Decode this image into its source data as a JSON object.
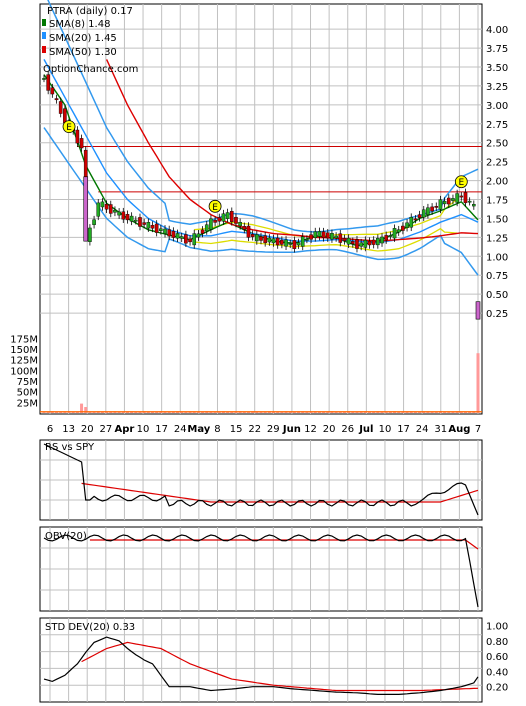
{
  "colors": {
    "panel_border": "#000000",
    "grid": "#c0c0c0",
    "candle_up": "#22aa22",
    "candle_down": "#cc0000",
    "sma8": "#007700",
    "sma20": "#1e90ff",
    "sma50": "#dd0000",
    "band_outer": "#3399ee",
    "band_inner": "#dddd00",
    "resistance": "#cc0000",
    "volume_bar": "#ff9999",
    "volume_avg": "#ff6600",
    "earnings_marker": "#ffff00",
    "black_line": "#000000",
    "spike_bar": "#cc66cc"
  },
  "main_panel": {
    "legend": [
      {
        "label": "PTRA (daily) 0.17",
        "swatch": "none"
      },
      {
        "label": "SMA(8) 1.48",
        "swatch": "#007700"
      },
      {
        "label": "SMA(20) 1.45",
        "swatch": "#1e90ff"
      },
      {
        "label": "SMA(50) 1.30",
        "swatch": "#dd0000"
      }
    ],
    "watermark": "OptionChance.com",
    "earnings_label": "E",
    "y_ticks": [
      "4.00",
      "3.75",
      "3.50",
      "3.25",
      "3.00",
      "2.75",
      "2.50",
      "2.25",
      "2.00",
      "1.75",
      "1.50",
      "1.25",
      "1.00",
      "0.75",
      "0.50",
      "0.25"
    ],
    "vol_ticks": [
      "175M",
      "150M",
      "125M",
      "100M",
      "75M",
      "50M",
      "25M"
    ]
  },
  "x_axis": {
    "labels": [
      "6",
      "13",
      "20",
      "27",
      "Apr",
      "10",
      "17",
      "24",
      "May",
      "8",
      "15",
      "22",
      "29",
      "Jun",
      "12",
      "20",
      "26",
      "Jul",
      "10",
      "17",
      "24",
      "31",
      "Aug",
      "7"
    ]
  },
  "rs_panel": {
    "label": "RS vs SPY"
  },
  "obv_panel": {
    "label": "OBV(20)"
  },
  "std_panel": {
    "label": "STD DEV(20) 0.33",
    "y_ticks": [
      "1.00",
      "0.80",
      "0.60",
      "0.40",
      "0.20"
    ]
  },
  "chart_data": [
    {
      "type": "line",
      "title": "PTRA (daily) 0.17",
      "note_earnings_days": [
        6,
        41,
        100
      ],
      "series": [
        {
          "name": "PTRA (daily) 0.17",
          "points": [
            [
              0,
              3.35
            ],
            [
              5,
              2.8
            ],
            [
              9,
              2.45
            ],
            [
              10,
              1.2
            ],
            [
              13,
              1.7
            ],
            [
              18,
              1.55
            ],
            [
              25,
              1.4
            ],
            [
              30,
              1.3
            ],
            [
              35,
              1.2
            ],
            [
              40,
              1.45
            ],
            [
              44,
              1.55
            ],
            [
              50,
              1.25
            ],
            [
              55,
              1.2
            ],
            [
              60,
              1.15
            ],
            [
              65,
              1.3
            ],
            [
              70,
              1.25
            ],
            [
              75,
              1.15
            ],
            [
              80,
              1.2
            ],
            [
              85,
              1.35
            ],
            [
              90,
              1.55
            ],
            [
              95,
              1.7
            ],
            [
              100,
              1.8
            ],
            [
              103,
              1.65
            ],
            [
              104,
              0.17
            ]
          ]
        },
        {
          "name": "SMA(8) 1.48",
          "points": [
            [
              0,
              3.4
            ],
            [
              5,
              3.0
            ],
            [
              10,
              2.2
            ],
            [
              15,
              1.7
            ],
            [
              20,
              1.5
            ],
            [
              25,
              1.35
            ],
            [
              30,
              1.28
            ],
            [
              35,
              1.22
            ],
            [
              40,
              1.35
            ],
            [
              44,
              1.45
            ],
            [
              50,
              1.3
            ],
            [
              55,
              1.2
            ],
            [
              60,
              1.17
            ],
            [
              65,
              1.27
            ],
            [
              70,
              1.24
            ],
            [
              75,
              1.14
            ],
            [
              80,
              1.2
            ],
            [
              85,
              1.32
            ],
            [
              90,
              1.5
            ],
            [
              95,
              1.6
            ],
            [
              100,
              1.72
            ],
            [
              104,
              1.48
            ]
          ]
        },
        {
          "name": "SMA(20) 1.45",
          "points": [
            [
              0,
              3.6
            ],
            [
              10,
              2.6
            ],
            [
              15,
              2.1
            ],
            [
              20,
              1.75
            ],
            [
              25,
              1.5
            ],
            [
              30,
              1.35
            ],
            [
              35,
              1.27
            ],
            [
              40,
              1.27
            ],
            [
              45,
              1.33
            ],
            [
              50,
              1.3
            ],
            [
              55,
              1.25
            ],
            [
              60,
              1.2
            ],
            [
              65,
              1.2
            ],
            [
              70,
              1.22
            ],
            [
              75,
              1.2
            ],
            [
              80,
              1.18
            ],
            [
              85,
              1.22
            ],
            [
              90,
              1.32
            ],
            [
              95,
              1.45
            ],
            [
              100,
              1.55
            ],
            [
              104,
              1.45
            ]
          ]
        },
        {
          "name": "SMA(50) 1.30",
          "points": [
            [
              15,
              3.6
            ],
            [
              20,
              3.0
            ],
            [
              25,
              2.5
            ],
            [
              30,
              2.05
            ],
            [
              35,
              1.75
            ],
            [
              40,
              1.55
            ],
            [
              45,
              1.42
            ],
            [
              50,
              1.35
            ],
            [
              55,
              1.3
            ],
            [
              60,
              1.28
            ],
            [
              65,
              1.25
            ],
            [
              70,
              1.24
            ],
            [
              75,
              1.22
            ],
            [
              80,
              1.2
            ],
            [
              85,
              1.22
            ],
            [
              90,
              1.24
            ],
            [
              95,
              1.27
            ],
            [
              100,
              1.31
            ],
            [
              104,
              1.3
            ]
          ]
        }
      ],
      "reference_lines": [
        2.45,
        1.85
      ],
      "ylim": [
        0,
        4.2
      ],
      "grid": true
    },
    {
      "type": "bar",
      "title": "Volume",
      "spikes": [
        [
          9,
          22
        ],
        [
          10,
          14
        ],
        [
          104,
          140
        ]
      ],
      "ylim": [
        0,
        185
      ]
    },
    {
      "type": "line",
      "title": "RS vs SPY"
    },
    {
      "type": "line",
      "title": "OBV(20)"
    },
    {
      "type": "line",
      "title": "STD DEV(20) 0.33",
      "series": [
        {
          "name": "STD DEV(20) 0.33",
          "points": [
            [
              0,
              0.3
            ],
            [
              2,
              0.27
            ],
            [
              5,
              0.35
            ],
            [
              8,
              0.5
            ],
            [
              10,
              0.65
            ],
            [
              12,
              0.78
            ],
            [
              15,
              0.85
            ],
            [
              18,
              0.8
            ],
            [
              20,
              0.7
            ],
            [
              22,
              0.62
            ],
            [
              24,
              0.55
            ],
            [
              26,
              0.5
            ],
            [
              28,
              0.35
            ],
            [
              30,
              0.2
            ],
            [
              35,
              0.2
            ],
            [
              40,
              0.15
            ],
            [
              45,
              0.17
            ],
            [
              50,
              0.2
            ],
            [
              55,
              0.2
            ],
            [
              60,
              0.17
            ],
            [
              65,
              0.15
            ],
            [
              70,
              0.13
            ],
            [
              75,
              0.12
            ],
            [
              80,
              0.1
            ],
            [
              85,
              0.1
            ],
            [
              90,
              0.12
            ],
            [
              95,
              0.15
            ],
            [
              100,
              0.2
            ],
            [
              103,
              0.25
            ],
            [
              104,
              0.33
            ]
          ]
        }
      ],
      "ylim": [
        0,
        1.1
      ]
    }
  ]
}
